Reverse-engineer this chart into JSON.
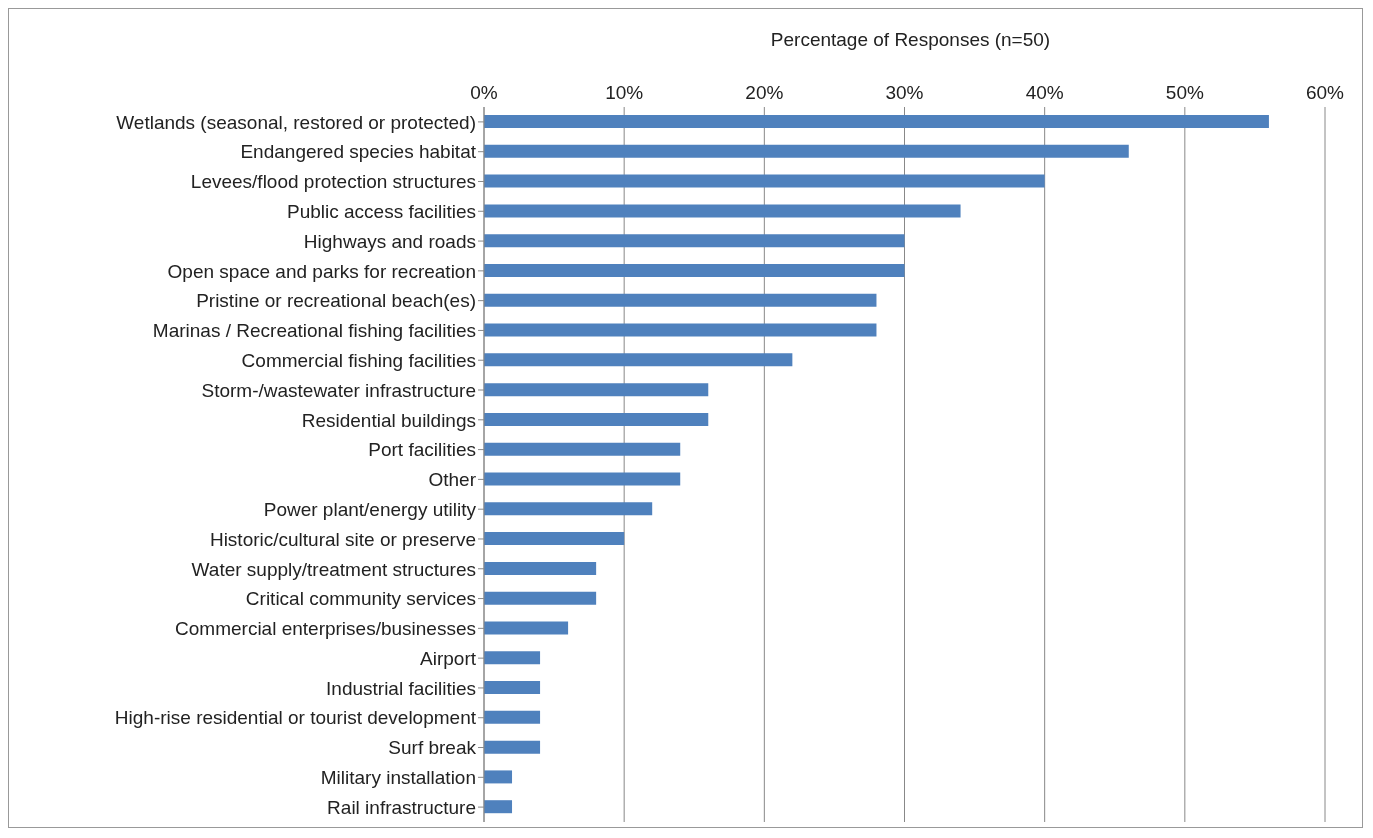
{
  "chart_data": {
    "type": "bar",
    "orientation": "horizontal",
    "xlabel": "Percentage of Responses (n=50)",
    "categories": [
      "Wetlands (seasonal, restored or protected)",
      "Endangered species habitat",
      "Levees/flood protection structures",
      "Public access facilities",
      "Highways and roads",
      "Open space and parks for recreation",
      "Pristine or recreational beach(es)",
      "Marinas / Recreational fishing facilities",
      "Commercial fishing facilities",
      "Storm-/wastewater infrastructure",
      "Residential buildings",
      "Port facilities",
      "Other",
      "Power plant/energy utility",
      "Historic/cultural site or preserve",
      "Water supply/treatment structures",
      "Critical community services",
      "Commercial enterprises/businesses",
      "Airport",
      "Industrial facilities",
      "High-rise residential or tourist development",
      "Surf break",
      "Military installation",
      "Rail infrastructure"
    ],
    "values": [
      56,
      46,
      40,
      34,
      30,
      30,
      28,
      28,
      22,
      16,
      16,
      14,
      14,
      12,
      10,
      8,
      8,
      6,
      4,
      4,
      4,
      4,
      2,
      2
    ],
    "color": "#4f81bd",
    "xlim": [
      0,
      60
    ],
    "xticks": [
      {
        "value": 0,
        "label": "0%"
      },
      {
        "value": 10,
        "label": "10%"
      },
      {
        "value": 20,
        "label": "20%"
      },
      {
        "value": 30,
        "label": "30%"
      },
      {
        "value": 40,
        "label": "40%"
      },
      {
        "value": 50,
        "label": "50%"
      },
      {
        "value": 60,
        "label": "60%"
      }
    ],
    "grid": "x",
    "legend": false
  }
}
